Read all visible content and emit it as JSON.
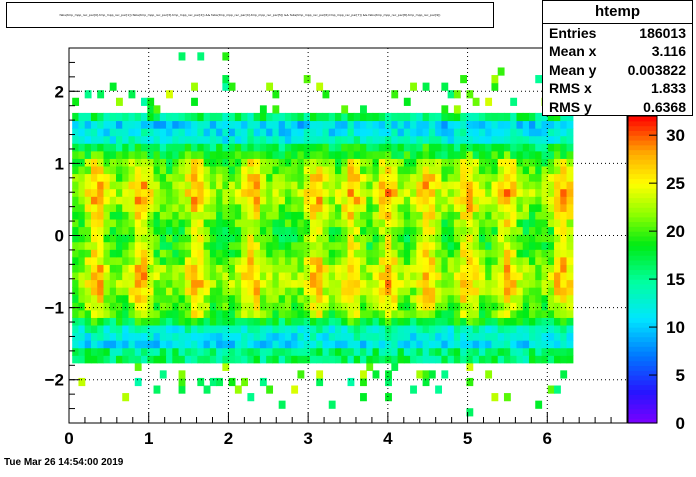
{
  "title_text": "fabs(tmp_mpp_rec_par[0]-tmp_mpp_rec_par[1]):fabs(tmp_mpp_rec_par[3]-tmp_mpp_rec_par[2]) && fabs(tmp_mpp_rec_par[4]-tmp_mpp_rec_par[5]) && fabs(tmp_mpp_rec_par[6]-tmp_mpp_rec_par[7]) && fabs(tmp_mpp_rec_par[8]-tmp_mpp_rec_par[9])",
  "stats": {
    "name": "htemp",
    "rows": [
      {
        "label": "Entries",
        "value": "186013"
      },
      {
        "label": "Mean x",
        "value": "3.116"
      },
      {
        "label": "Mean y",
        "value": "0.003822"
      },
      {
        "label": "RMS x",
        "value": "1.833"
      },
      {
        "label": "RMS y",
        "value": "0.6368"
      }
    ]
  },
  "timestamp": "Tue Mar 26 14:54:00 2019",
  "chart_data": {
    "type": "heatmap",
    "xlim": [
      0,
      7.0
    ],
    "ylim": [
      -2.6,
      2.6
    ],
    "x_ticks": [
      "0",
      "1",
      "2",
      "3",
      "4",
      "5",
      "6"
    ],
    "y_ticks": [
      "−2",
      "−1",
      "0",
      "1",
      "2"
    ],
    "z_ticks": [
      "0",
      "5",
      "10",
      "15",
      "20",
      "25",
      "30"
    ],
    "zlim": [
      0,
      32
    ],
    "grid": true,
    "palette": "rainbow",
    "colorbar_position": "right",
    "bins": {
      "x_width": 0.0785,
      "y_width": 0.105,
      "x_range": [
        0,
        6.28
      ],
      "y_range": [
        -1.7,
        1.7
      ]
    },
    "occupancy_note": "dense band |y|<1.7 over 0<x<2pi; peak counts ~30 near y=+-0.6 and x=0.4,0.9,1.6,3.1,3.5,4.0,4.5,5.0,5.5,6.2"
  }
}
